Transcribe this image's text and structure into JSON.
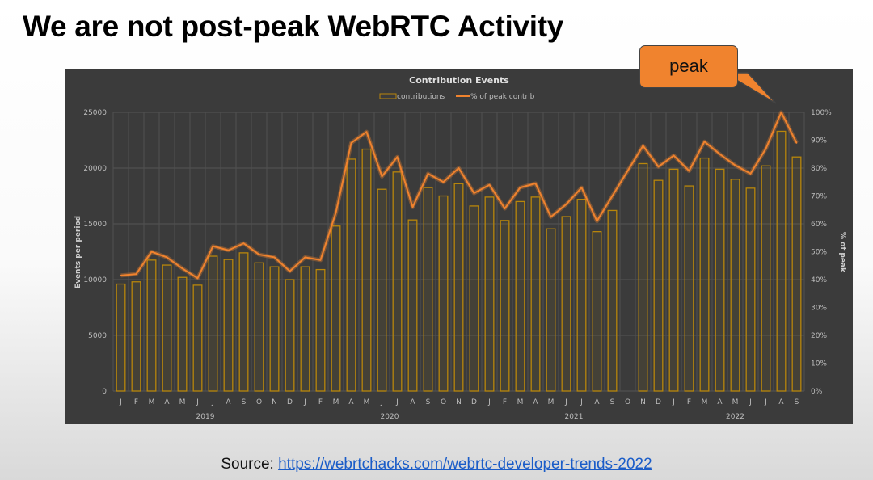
{
  "slide": {
    "title": "We are not post-peak WebRTC Activity",
    "callout": "peak",
    "source_label": "Source:",
    "source_link": "https://webrtchacks.com/webrtc-developer-trends-2022"
  },
  "chart_data": {
    "type": "bar+line",
    "title": "Contribution Events",
    "legend": [
      "contributions",
      "% of peak contrib"
    ],
    "legend_position": "top-center",
    "ylabel": "Events per period",
    "y2label": "% of peak",
    "ylim": [
      0,
      25000
    ],
    "y2lim": [
      0,
      100
    ],
    "yticks": [
      "0",
      "5000",
      "10000",
      "15000",
      "20000",
      "25000"
    ],
    "y2ticks": [
      "0%",
      "10%",
      "20%",
      "30%",
      "40%",
      "50%",
      "60%",
      "70%",
      "80%",
      "90%",
      "100%"
    ],
    "categories": [
      "J",
      "F",
      "M",
      "A",
      "M",
      "J",
      "J",
      "A",
      "S",
      "O",
      "N",
      "D",
      "J",
      "F",
      "M",
      "A",
      "M",
      "J",
      "J",
      "A",
      "S",
      "O",
      "N",
      "D",
      "J",
      "F",
      "M",
      "A",
      "M",
      "J",
      "J",
      "A",
      "S",
      "O",
      "N",
      "D",
      "J",
      "F",
      "M",
      "A",
      "M",
      "J",
      "J",
      "A",
      "S"
    ],
    "years": [
      {
        "label": "2019",
        "start": 0,
        "end": 11
      },
      {
        "label": "2020",
        "start": 12,
        "end": 23
      },
      {
        "label": "2021",
        "start": 24,
        "end": 35
      },
      {
        "label": "2022",
        "start": 36,
        "end": 44
      }
    ],
    "series": [
      {
        "name": "contributions",
        "axis": "left",
        "values": [
          9600,
          9800,
          11750,
          11300,
          10200,
          9500,
          12100,
          11800,
          12400,
          11500,
          11150,
          10000,
          11150,
          10900,
          14800,
          20800,
          21700,
          18100,
          19650,
          15350,
          18250,
          17500,
          18600,
          16600,
          17400,
          15300,
          17000,
          17400,
          14550,
          15650,
          17200,
          14300,
          16200,
          null,
          20400,
          18900,
          19900,
          18400,
          20900,
          19900,
          19000,
          18200,
          20200,
          23300,
          21000
        ]
      },
      {
        "name": "% of peak contrib",
        "axis": "right",
        "values": [
          41.5,
          42,
          50,
          48,
          44,
          40.5,
          52,
          50.5,
          53,
          49,
          48,
          43,
          48,
          47,
          64,
          89,
          93,
          77,
          84,
          66,
          78,
          75,
          80,
          71,
          74,
          65.5,
          73,
          74.5,
          62.5,
          67,
          73,
          61,
          70,
          79,
          88,
          80.5,
          84.5,
          79,
          89.5,
          85,
          81,
          78,
          87,
          100,
          89
        ]
      }
    ],
    "colors": {
      "bar": "#b8860b",
      "line": "#f0832e",
      "panel": "#3b3b3b",
      "grid": "#555555",
      "text": "#bdbdbd"
    }
  }
}
